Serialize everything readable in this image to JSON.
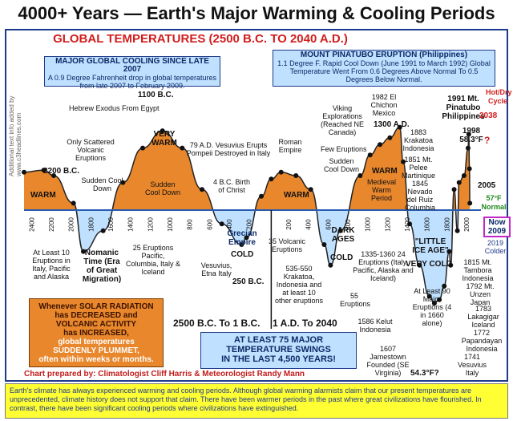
{
  "page": {
    "title": "4000+ Years — Earth's Major Warming & Cooling Periods",
    "subtitle": "GLOBAL TEMPERATURES (2500 B.C. TO 2040 A.D.)",
    "side_note": "Additional text info added by www.c3headlines.com"
  },
  "boxes": {
    "cooling_title": "MAJOR GLOBAL COOLING SINCE LATE 2007",
    "cooling_text": "A 0.9 Degree Fahrenheit drop in global temperatures from late 2007 to February 2009.",
    "pinatubo_title": "MOUNT PINATUBO ERUPTION (Philippines)",
    "pinatubo_text": "1.1 Degree F. Rapid Cool Down (June 1991 to March 1992) Global Temperature Went From 0.6 Degrees Above Normal To 0.5 Degrees Below Normal.",
    "solar_l1": "Whenever SOLAR RADIATION",
    "solar_l2": "has DECREASED and",
    "solar_l3": "VOLCANIC ACTIVITY",
    "solar_l4": "has INCREASED,",
    "solar_l5": "global temperatures",
    "solar_l6": "SUDDENLY PLUMMET,",
    "solar_l7": "often within weeks or months.",
    "swing_l1": "AT LEAST 75 MAJOR",
    "swing_l2": "TEMPERATURE SWINGS",
    "swing_l3": "IN THE LAST 4,500 YEARS!"
  },
  "eras": {
    "bc": "2500 B.C. To 1 B.C.",
    "ad": "1 A.D. To 2040"
  },
  "regions": {
    "warm1": "WARM",
    "very_warm": "VERY WARM",
    "warm2": "WARM",
    "warm_medieval": "WARM",
    "medieval_period": "Medieval Warm Period",
    "grecian": "Grecian Empire",
    "cold1": "COLD",
    "dark_ages": "DARK AGES",
    "cold2": "COLD",
    "little_ice": "\"LITTLE ICE AGE\"",
    "very_cold": "VERY COLD",
    "nomanic": "Nomanic Time (Era of Great Migration)"
  },
  "annotations": {
    "b2200": "2200 B.C.",
    "b1100": "1100 B.C.",
    "exodus": "Hebrew Exodus From Egypt",
    "scattered": "Only Scattered Volcanic Eruptions",
    "sudden1": "Sudden Cool Down",
    "sudden2": "Sudden Cool Down",
    "vesuvius79": "79 A.D. Vesuvius Erupts Pompeii Destroyed in Italy",
    "christ": "4 B.C. Birth of Christ",
    "roman": "Roman Empire",
    "viking": "Viking Explorations (Reached NE Canada)",
    "a1982": "1982 El Chichon Mexico",
    "a1300": "1300 A.D.",
    "few": "Few Eruptions",
    "sudden3": "Sudden Cool Down",
    "krakatoa": "1883 Krakatoa Indonesia",
    "pelee": "1851 Mt. Pelee Martinique",
    "nevado": "1845 Nevado del Ruiz Columbia",
    "pinatubo": "1991 Mt. Pinatubo Philippines",
    "y2038": "2038",
    "y1998": "1998 58.3°F",
    "qmark": "?",
    "hotdry": "Hot/Dry Cycle",
    "y2005": "2005",
    "normal": "57°F Normal",
    "now": "Now 2009",
    "y2019": "2019 Colder",
    "tambora": "1815 Mt. Tambora Indonesia",
    "unzen": "1792 Mt. Unzen Japan",
    "laki": "1783 Lakagigar Iceland",
    "papandayan": "1772 Papandayan Indonesia",
    "vesuvius1741": "1741 Vesuvius Italy",
    "atleast90": "At Least 90 Major Eruptions (4 in 1660 alone)",
    "jamestown": "1607 Jamestown Founded (SE Virginia)",
    "f543": "54.3°F?",
    "kelut": "1586 Kelut Indonesia",
    "e55": "55 Eruptions",
    "e1335": "1335-1360 24 Eruptions (Italy, Pacific, Alaska and Iceland)",
    "e535": "535-550 Krakatoa, Indonesia and at least 10 other eruptions",
    "e35": "35 Volcanic Eruptions",
    "vesuvius_etna": "Vesuvius, Etna Italy",
    "b250": "250 B.C.",
    "e25": "25 Eruptions Pacific, Columbia, Italy & Iceland",
    "e10": "At Least 10 Eruptions in Italy, Pacific and Alaska"
  },
  "credit": "Chart prepared by: Climatologist Cliff Harris & Meteorologist Randy Mann",
  "footer": "Earth's climate has always experienced warming and cooling periods. Although global warming alarmists claim that our present temperatures are unprecedented, climate history does not support that claim. There have been warmer periods in the past where great civilizations have flourished. In contrast, there have been significant cooling periods where civilizations have extinguished.",
  "chart_data": {
    "type": "area",
    "title": "GLOBAL TEMPERATURES (2500 B.C. TO 2040 A.D.)",
    "baseline_label": "57°F Normal",
    "x_ticks_bc": [
      "2400",
      "2200",
      "2000",
      "1800",
      "1600",
      "1400",
      "1200",
      "1000",
      "800",
      "600",
      "400",
      "200"
    ],
    "x_ticks_ad": [
      "200",
      "400",
      "600",
      "800",
      "1000",
      "1200",
      "1400",
      "1600",
      "1800",
      "2000"
    ],
    "x": [
      -2500,
      -2300,
      -2200,
      -2000,
      -1900,
      -1700,
      -1500,
      -1300,
      -1100,
      -900,
      -700,
      -500,
      -300,
      -250,
      -100,
      0,
      100,
      250,
      400,
      535,
      600,
      700,
      900,
      1000,
      1100,
      1200,
      1300,
      1335,
      1400,
      1500,
      1600,
      1650,
      1700,
      1750,
      1800,
      1815,
      1850,
      1883,
      1900,
      1950,
      1991,
      1998,
      2005,
      2009
    ],
    "y_relative": [
      0.55,
      0.58,
      0.5,
      0.1,
      -0.6,
      -0.3,
      0.4,
      0.9,
      1.15,
      0.9,
      0.3,
      -0.2,
      -0.5,
      -0.4,
      0.2,
      0.45,
      0.55,
      0.5,
      0.3,
      -0.5,
      -0.8,
      -0.3,
      0.5,
      0.8,
      0.95,
      1.05,
      1.2,
      0.7,
      -0.2,
      -0.8,
      -1.25,
      -1.35,
      -1.3,
      -1.1,
      -0.6,
      -0.8,
      0.3,
      -0.3,
      0.4,
      0.5,
      0.9,
      1.1,
      0.6,
      0.1
    ]
  }
}
